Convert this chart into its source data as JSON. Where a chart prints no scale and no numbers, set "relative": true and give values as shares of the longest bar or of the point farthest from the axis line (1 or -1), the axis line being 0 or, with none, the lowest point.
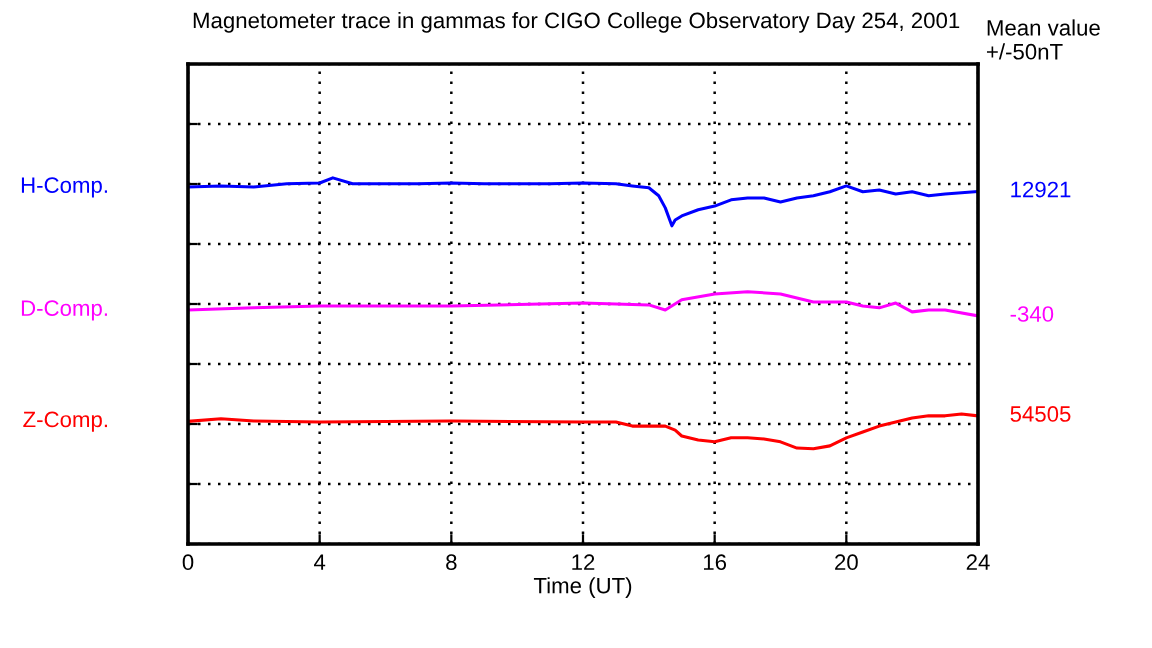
{
  "chart_data": {
    "type": "line",
    "title": "Magnetometer trace in gammas for CIGO College Observatory Day 254, 2001",
    "xlabel": "Time (UT)",
    "relative": true,
    "xlim": [
      0,
      24
    ],
    "xticks": [
      0,
      4,
      8,
      12,
      16,
      20,
      24
    ],
    "grid": true,
    "legend": false,
    "marker": "none",
    "line_style": "solid",
    "series": [
      {
        "name": "H-Comp.",
        "color": "#0000ff",
        "x": [
          0,
          1,
          2,
          3,
          4,
          4.4,
          5,
          6,
          7,
          8,
          9,
          10,
          11,
          12,
          13,
          13.5,
          14,
          14.3,
          14.5,
          14.7,
          14.8,
          15,
          15.5,
          16,
          16.5,
          17,
          17.5,
          18,
          18.5,
          19,
          19.5,
          20,
          20.5,
          21,
          21.5,
          22,
          22.5,
          23,
          24
        ],
        "values": [
          0.975,
          0.978,
          0.975,
          0.984,
          0.986,
          1.0,
          0.984,
          0.984,
          0.984,
          0.986,
          0.984,
          0.984,
          0.984,
          0.986,
          0.984,
          0.978,
          0.973,
          0.951,
          0.918,
          0.869,
          0.885,
          0.896,
          0.913,
          0.923,
          0.94,
          0.945,
          0.945,
          0.934,
          0.945,
          0.951,
          0.962,
          0.978,
          0.962,
          0.967,
          0.956,
          0.962,
          0.951,
          0.956,
          0.963
        ]
      },
      {
        "name": "D-Comp.",
        "color": "#ff00ff",
        "x": [
          0,
          2,
          4,
          8,
          12,
          14,
          14.5,
          15,
          16,
          17,
          18,
          18.5,
          19,
          20,
          20.5,
          21,
          21.5,
          22,
          22.5,
          23,
          24
        ],
        "values": [
          0.639,
          0.645,
          0.65,
          0.65,
          0.658,
          0.653,
          0.639,
          0.667,
          0.683,
          0.689,
          0.683,
          0.672,
          0.661,
          0.661,
          0.65,
          0.645,
          0.658,
          0.634,
          0.639,
          0.639,
          0.623
        ]
      },
      {
        "name": "Z-Comp.",
        "color": "#ff0000",
        "x": [
          0,
          1,
          2,
          4,
          8,
          12,
          13,
          13.5,
          14.5,
          14.8,
          15,
          15.5,
          16,
          16.5,
          17,
          17.5,
          18,
          18.5,
          19,
          19.5,
          20,
          20.5,
          21,
          21.5,
          22,
          22.5,
          23,
          23.5,
          24
        ],
        "values": [
          0.335,
          0.342,
          0.336,
          0.333,
          0.336,
          0.333,
          0.333,
          0.322,
          0.322,
          0.311,
          0.295,
          0.284,
          0.279,
          0.29,
          0.29,
          0.287,
          0.279,
          0.262,
          0.26,
          0.268,
          0.29,
          0.306,
          0.322,
          0.333,
          0.344,
          0.35,
          0.35,
          0.355,
          0.35
        ]
      }
    ],
    "annotations": [
      "Mean value\n+/-50nT",
      "12921",
      "-340",
      "54505"
    ]
  }
}
